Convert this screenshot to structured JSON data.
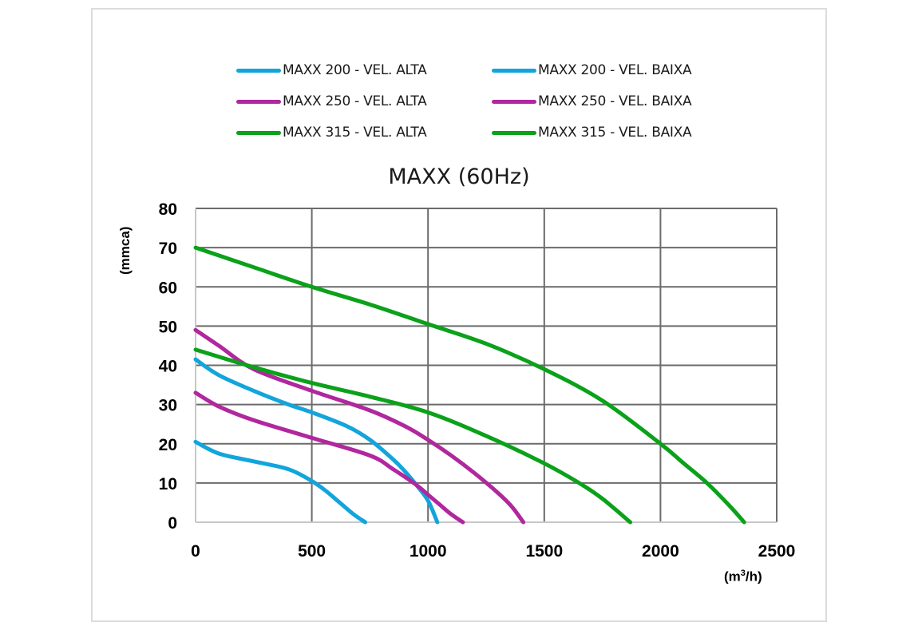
{
  "chart_data": {
    "type": "line",
    "title": "MAXX (60Hz)",
    "xlabel": "(m³/h)",
    "xlabel_parts": {
      "pre": "(m",
      "sup": "3",
      "post": "/h)"
    },
    "ylabel": "(mmca)",
    "xlim": [
      0,
      2500
    ],
    "ylim": [
      0,
      80
    ],
    "xticks": [
      "0",
      "500",
      "1000",
      "1500",
      "2000",
      "2500"
    ],
    "yticks": [
      "0",
      "10",
      "20",
      "30",
      "40",
      "50",
      "60",
      "70",
      "80"
    ],
    "xtick_values": [
      0,
      500,
      1000,
      1500,
      2000,
      2500
    ],
    "ytick_values": [
      0,
      10,
      20,
      30,
      40,
      50,
      60,
      70,
      80
    ],
    "grid": true,
    "legend_position": "top",
    "series": [
      {
        "name": "MAXX 200 - VEL. ALTA",
        "color": "#12A5DC",
        "x": [
          0,
          100,
          250,
          400,
          500,
          650,
          750,
          850,
          900,
          950,
          1000,
          1040
        ],
        "y": [
          41.5,
          37.5,
          33.5,
          30,
          28,
          24.5,
          21,
          16,
          13,
          9.5,
          5.5,
          0
        ]
      },
      {
        "name": "MAXX 200 - VEL. BAIXA",
        "color": "#12A5DC",
        "x": [
          0,
          100,
          250,
          400,
          500,
          560,
          620,
          680,
          730
        ],
        "y": [
          20.5,
          17.5,
          15.5,
          13.5,
          10.5,
          8,
          5,
          2,
          0
        ]
      },
      {
        "name": "MAXX 250 - VEL. ALTA",
        "color": "#B0279E",
        "x": [
          0,
          100,
          250,
          500,
          750,
          900,
          1000,
          1100,
          1200,
          1300,
          1360,
          1410
        ],
        "y": [
          49,
          45,
          39,
          33.5,
          28.5,
          24.5,
          21,
          17,
          12.5,
          7.5,
          4,
          0
        ]
      },
      {
        "name": "MAXX 250 - VEL. BAIXA",
        "color": "#B0279E",
        "x": [
          0,
          100,
          250,
          500,
          750,
          850,
          950,
          1000,
          1050,
          1100,
          1150
        ],
        "y": [
          33,
          29.5,
          26,
          21.5,
          17,
          13.5,
          9.5,
          7,
          4.5,
          2,
          0
        ]
      },
      {
        "name": "MAXX 315 - VEL. ALTA",
        "color": "#0BA11A",
        "x": [
          0,
          250,
          500,
          750,
          1000,
          1250,
          1500,
          1750,
          2000,
          2100,
          2200,
          2300,
          2360
        ],
        "y": [
          70,
          65,
          60,
          55.5,
          50.5,
          45.5,
          39,
          31,
          20,
          15,
          10,
          4,
          0
        ]
      },
      {
        "name": "MAXX 315 - VEL. BAIXA",
        "color": "#0BA11A",
        "x": [
          0,
          250,
          500,
          750,
          1000,
          1250,
          1500,
          1650,
          1750,
          1870
        ],
        "y": [
          44,
          39.5,
          35.5,
          32,
          28,
          22,
          15,
          10,
          6,
          0
        ]
      }
    ]
  },
  "legend": [
    {
      "label": "MAXX 200 - VEL. ALTA",
      "color": "#12A5DC"
    },
    {
      "label": "MAXX 200 - VEL. BAIXA",
      "color": "#12A5DC"
    },
    {
      "label": "MAXX 250 - VEL. ALTA",
      "color": "#B0279E"
    },
    {
      "label": "MAXX 250 - VEL. BAIXA",
      "color": "#B0279E"
    },
    {
      "label": "MAXX 315 - VEL. ALTA",
      "color": "#0BA11A"
    },
    {
      "label": "MAXX 315 - VEL. BAIXA",
      "color": "#0BA11A"
    }
  ]
}
